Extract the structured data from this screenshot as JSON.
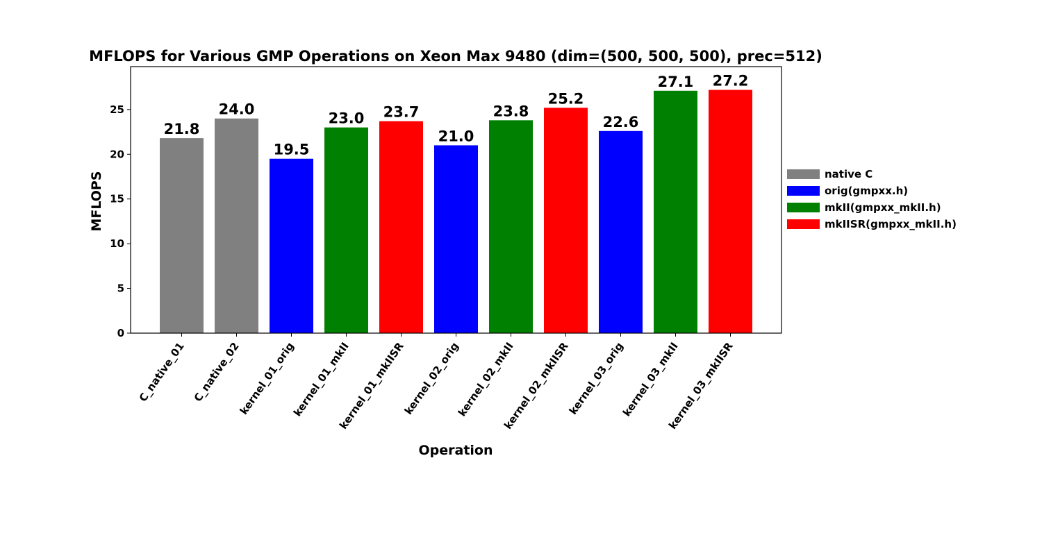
{
  "chart_data": {
    "type": "bar",
    "title": "MFLOPS for Various GMP Operations on Xeon Max 9480 (dim=(500, 500, 500), prec=512)",
    "xlabel": "Operation",
    "ylabel": "MFLOPS",
    "ylim": [
      0,
      29.8
    ],
    "yticks": [
      0,
      5,
      10,
      15,
      20,
      25
    ],
    "grid": false,
    "legend_placement": "right",
    "categories": [
      "C_native_01",
      "C_native_02",
      "kernel_01_orig",
      "kernel_01_mkII",
      "kernel_01_mkIISR",
      "kernel_02_orig",
      "kernel_02_mkII",
      "kernel_02_mkIISR",
      "kernel_03_orig",
      "kernel_03_mkII",
      "kernel_03_mkIISR"
    ],
    "values": [
      21.8,
      24.0,
      19.5,
      23.0,
      23.7,
      21.0,
      23.8,
      25.2,
      22.6,
      27.1,
      27.2
    ],
    "data_labels": [
      "21.8",
      "24.0",
      "19.5",
      "23.0",
      "23.7",
      "21.0",
      "23.8",
      "25.2",
      "22.6",
      "27.1",
      "27.2"
    ],
    "bar_series_index": [
      0,
      0,
      1,
      2,
      3,
      1,
      2,
      3,
      1,
      2,
      3
    ],
    "legend": [
      {
        "name": "native C",
        "color": "#808080"
      },
      {
        "name": "orig(gmpxx.h)",
        "color": "#0000ff"
      },
      {
        "name": "mkII(gmpxx_mkII.h)",
        "color": "#008000"
      },
      {
        "name": "mkIISR(gmpxx_mkII.h)",
        "color": "#ff0000"
      }
    ]
  }
}
